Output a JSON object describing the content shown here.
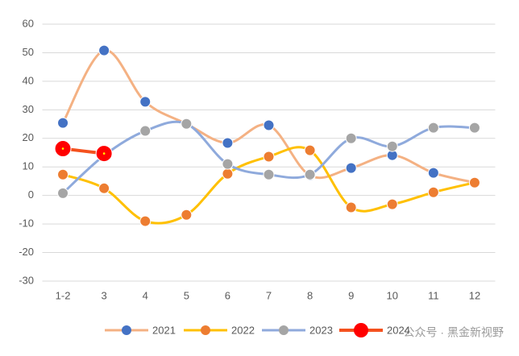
{
  "chart_data": {
    "type": "line",
    "categories": [
      "1-2",
      "3",
      "4",
      "5",
      "6",
      "7",
      "8",
      "9",
      "10",
      "11",
      "12"
    ],
    "series": [
      {
        "name": "2021",
        "color": "#f4b183",
        "marker_color": "#4472c4",
        "values": [
          25.4,
          50.8,
          32.8,
          25.1,
          18.4,
          24.6,
          7,
          9.6,
          14.1,
          7.9,
          4.5
        ]
      },
      {
        "name": "2022",
        "color": "#ffc000",
        "marker_color": "#ed7d31",
        "values": [
          7.3,
          2.5,
          -9,
          -6.8,
          7.6,
          13.6,
          15.8,
          -4.2,
          -3.1,
          1.1,
          4.5
        ]
      },
      {
        "name": "2023",
        "color": "#8faadc",
        "marker_color": "#a5a5a5",
        "values": [
          0.8,
          14,
          22.6,
          25.1,
          11,
          7.3,
          7.3,
          20,
          17.2,
          23.7,
          23.7
        ]
      },
      {
        "name": "2024",
        "color": "#f4511e",
        "marker_color": "#ff0000",
        "values": [
          16.4,
          14.7,
          null,
          null,
          null,
          null,
          null,
          null,
          null,
          null,
          null
        ]
      }
    ],
    "ylim": [
      -30,
      60
    ],
    "yticks": [
      -30,
      -20,
      -10,
      0,
      10,
      20,
      30,
      40,
      50,
      60
    ],
    "grid": true,
    "watermark": "公众号 · 黑金新视野"
  }
}
